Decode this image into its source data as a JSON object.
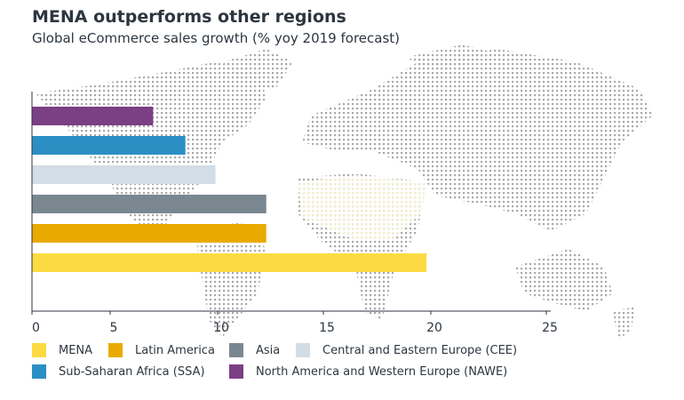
{
  "chart_data": {
    "type": "bar",
    "orientation": "horizontal",
    "title": "MENA outperforms other regions",
    "subtitle": "Global eCommerce sales growth (% yoy 2019 forecast)",
    "categories": [
      "North America and Western Europe (NAWE)",
      "Sub-Saharan Africa (SSA)",
      "Central and Eastern Europe (CEE)",
      "Asia",
      "Latin America",
      "MENA"
    ],
    "values": [
      7.0,
      8.5,
      9.9,
      12.3,
      12.3,
      19.8
    ],
    "colors": [
      "#7b3f84",
      "#2b8fc4",
      "#d3dde6",
      "#7a8791",
      "#e9aa00",
      "#fcdb42"
    ],
    "xticks": [
      0,
      5,
      10,
      15,
      20,
      25
    ],
    "xlim": [
      0,
      25
    ],
    "grid": false,
    "background": "dotted world map",
    "legend_position": "bottom",
    "legend": [
      {
        "label": "MENA",
        "color": "#fcdb42"
      },
      {
        "label": "Latin America",
        "color": "#e9aa00"
      },
      {
        "label": "Asia",
        "color": "#7a8791"
      },
      {
        "label": "Central and Eastern Europe (CEE)",
        "color": "#d3dde6"
      },
      {
        "label": "Sub-Saharan Africa (SSA)",
        "color": "#2b8fc4"
      },
      {
        "label": "North America and Western Europe (NAWE)",
        "color": "#7b3f84"
      }
    ]
  }
}
